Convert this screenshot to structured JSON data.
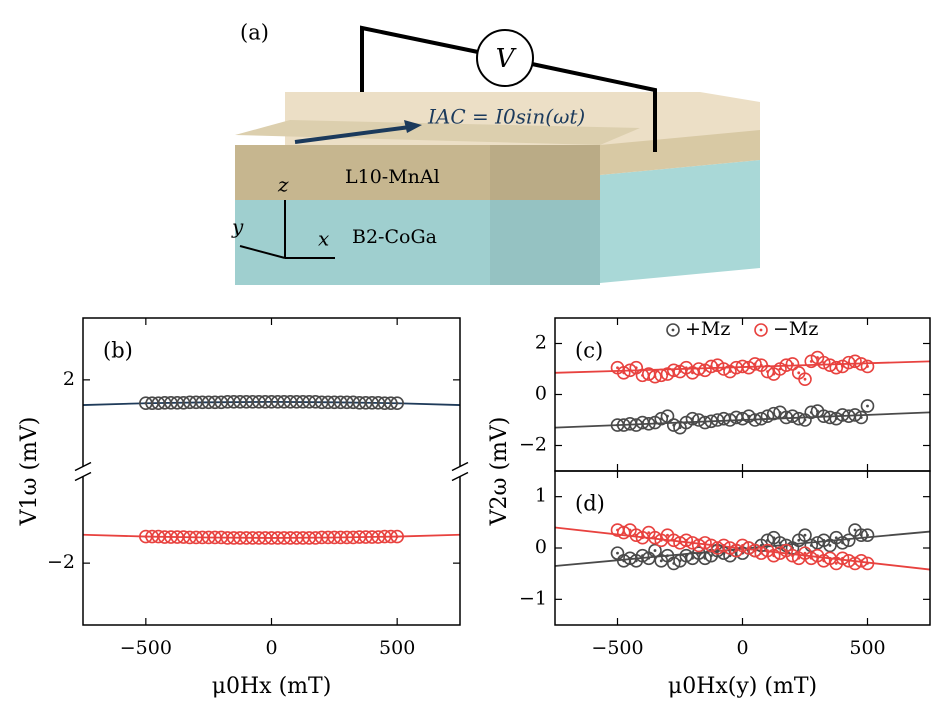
{
  "diagram": {
    "panel_label": "(a)",
    "meter": "V",
    "current": "IAC = I0sin(ωt)",
    "layer_top": "L10-MnAl",
    "layer_bottom": "B2-CoGa",
    "axis_x": "x",
    "axis_y": "y",
    "axis_z": "z"
  },
  "chart_data": [
    {
      "type": "scatter",
      "panel_label": "(b)",
      "xlabel": "μ0Hx (mT)",
      "ylabel": "V1ω (mV)",
      "axis_break": true,
      "xlim": [
        -750,
        750
      ],
      "ylim": [
        -3.35,
        3.35
      ],
      "xticks": [
        {
          "value": -500,
          "label": "−500"
        },
        0,
        500
      ],
      "yticks": [
        {
          "value": -2,
          "label": "−2"
        },
        2
      ],
      "x": [
        -500,
        -475,
        -450,
        -425,
        -400,
        -375,
        -350,
        -325,
        -300,
        -275,
        -250,
        -225,
        -200,
        -175,
        -150,
        -125,
        -100,
        -75,
        -50,
        -25,
        0,
        25,
        50,
        75,
        100,
        125,
        150,
        175,
        200,
        225,
        250,
        275,
        300,
        325,
        350,
        375,
        400,
        425,
        450,
        475,
        500
      ],
      "series": [
        {
          "color": "#4a4a4a",
          "values": [
            1.49,
            1.49,
            1.49,
            1.5,
            1.5,
            1.5,
            1.5,
            1.51,
            1.51,
            1.51,
            1.51,
            1.51,
            1.51,
            1.52,
            1.52,
            1.52,
            1.52,
            1.52,
            1.52,
            1.52,
            1.52,
            1.52,
            1.52,
            1.52,
            1.52,
            1.52,
            1.52,
            1.52,
            1.51,
            1.51,
            1.51,
            1.51,
            1.51,
            1.51,
            1.5,
            1.5,
            1.5,
            1.5,
            1.49,
            1.49,
            1.49
          ]
        },
        {
          "color": "#e8423f",
          "values": [
            -1.42,
            -1.42,
            -1.42,
            -1.43,
            -1.43,
            -1.43,
            -1.43,
            -1.44,
            -1.44,
            -1.44,
            -1.44,
            -1.44,
            -1.44,
            -1.45,
            -1.45,
            -1.45,
            -1.45,
            -1.45,
            -1.45,
            -1.45,
            -1.45,
            -1.45,
            -1.45,
            -1.45,
            -1.45,
            -1.45,
            -1.45,
            -1.45,
            -1.44,
            -1.44,
            -1.44,
            -1.44,
            -1.44,
            -1.44,
            -1.43,
            -1.43,
            -1.43,
            -1.43,
            -1.42,
            -1.42,
            -1.42
          ]
        }
      ],
      "fits": [
        {
          "color": "#1f3b5a",
          "x": [
            -750,
            -500,
            -250,
            0,
            250,
            500,
            750
          ],
          "values": [
            1.45,
            1.49,
            1.51,
            1.52,
            1.51,
            1.49,
            1.45
          ]
        },
        {
          "color": "#e8423f",
          "x": [
            -750,
            -500,
            -250,
            0,
            250,
            500,
            750
          ],
          "values": [
            -1.38,
            -1.42,
            -1.44,
            -1.45,
            -1.44,
            -1.42,
            -1.38
          ]
        }
      ]
    },
    {
      "type": "scatter",
      "panel_label": "(c)",
      "ylabel": "V2ω (mV)",
      "xtick_labels": false,
      "xlim": [
        -750,
        750
      ],
      "ylim": [
        -3,
        3
      ],
      "xticks": [
        -500,
        0,
        500
      ],
      "yticks": [
        {
          "value": -2,
          "label": "−2"
        },
        0,
        2
      ],
      "x": [
        -500,
        -475,
        -450,
        -425,
        -400,
        -375,
        -350,
        -325,
        -300,
        -275,
        -250,
        -225,
        -200,
        -175,
        -150,
        -125,
        -100,
        -75,
        -50,
        -25,
        0,
        25,
        50,
        75,
        100,
        125,
        150,
        175,
        200,
        225,
        250,
        275,
        300,
        325,
        350,
        375,
        400,
        425,
        450,
        475,
        500
      ],
      "series": [
        {
          "name": "+Mz",
          "color": "#4a4a4a",
          "values": [
            -1.2,
            -1.2,
            -1.15,
            -1.2,
            -1.1,
            -1.15,
            -1.1,
            -0.95,
            -0.85,
            -1.2,
            -1.3,
            -1.1,
            -0.95,
            -1.0,
            -1.1,
            -1.05,
            -1.0,
            -0.95,
            -1.0,
            -0.9,
            -0.95,
            -0.85,
            -1.0,
            -0.95,
            -0.85,
            -0.75,
            -0.7,
            -0.9,
            -0.85,
            -0.95,
            -1.0,
            -0.7,
            -0.65,
            -0.85,
            -0.9,
            -0.95,
            -0.8,
            -0.85,
            -0.8,
            -0.9,
            -0.45
          ]
        },
        {
          "name": "−Mz",
          "color": "#e8423f",
          "values": [
            1.05,
            0.85,
            0.95,
            1.05,
            0.75,
            0.8,
            0.7,
            0.75,
            0.8,
            0.95,
            0.9,
            1.05,
            0.85,
            1.0,
            0.95,
            1.1,
            1.15,
            1.0,
            0.9,
            1.05,
            1.1,
            1.05,
            1.2,
            1.15,
            0.9,
            0.8,
            1.0,
            1.15,
            1.2,
            0.85,
            0.6,
            1.3,
            1.45,
            1.25,
            1.15,
            1.05,
            1.1,
            1.25,
            1.3,
            1.2,
            1.1
          ]
        }
      ],
      "fits": [
        {
          "color": "#4a4a4a",
          "x": [
            -750,
            750
          ],
          "values": [
            -1.3,
            -0.7
          ]
        },
        {
          "color": "#e8423f",
          "x": [
            -750,
            750
          ],
          "values": [
            0.85,
            1.3
          ]
        }
      ]
    },
    {
      "type": "scatter",
      "panel_label": "(d)",
      "xlabel": "μ0Hx(y) (mT)",
      "xlim": [
        -750,
        750
      ],
      "ylim": [
        -1.5,
        1.5
      ],
      "xticks": [
        {
          "value": -500,
          "label": "−500"
        },
        0,
        500
      ],
      "yticks": [
        {
          "value": -1,
          "label": "−1"
        },
        0,
        1
      ],
      "x": [
        -500,
        -475,
        -450,
        -425,
        -400,
        -375,
        -350,
        -325,
        -300,
        -275,
        -250,
        -225,
        -200,
        -175,
        -150,
        -125,
        -100,
        -75,
        -50,
        -25,
        0,
        25,
        50,
        75,
        100,
        125,
        150,
        175,
        200,
        225,
        250,
        275,
        300,
        325,
        350,
        375,
        400,
        425,
        450,
        475,
        500
      ],
      "series": [
        {
          "color": "#4a4a4a",
          "values": [
            -0.1,
            -0.25,
            -0.2,
            -0.25,
            -0.15,
            -0.2,
            -0.05,
            -0.25,
            -0.15,
            -0.3,
            -0.25,
            -0.15,
            -0.2,
            -0.1,
            -0.2,
            -0.15,
            -0.05,
            -0.1,
            -0.15,
            -0.05,
            -0.1,
            0.0,
            -0.05,
            0.05,
            0.15,
            0.2,
            0.1,
            0.05,
            0.0,
            0.15,
            0.25,
            0.05,
            0.1,
            0.15,
            0.05,
            0.2,
            0.1,
            0.15,
            0.35,
            0.25,
            0.25
          ]
        },
        {
          "color": "#e8423f",
          "values": [
            0.35,
            0.3,
            0.35,
            0.25,
            0.2,
            0.3,
            0.2,
            0.15,
            0.25,
            0.15,
            0.1,
            0.15,
            0.1,
            0.05,
            0.1,
            0.05,
            0.0,
            0.05,
            0.0,
            -0.05,
            0.05,
            0.0,
            -0.05,
            -0.1,
            -0.05,
            -0.15,
            -0.1,
            -0.05,
            -0.15,
            -0.2,
            -0.1,
            -0.2,
            -0.15,
            -0.25,
            -0.2,
            -0.3,
            -0.2,
            -0.25,
            -0.3,
            -0.25,
            -0.3
          ]
        }
      ],
      "fits": [
        {
          "color": "#4a4a4a",
          "x": [
            -750,
            750
          ],
          "values": [
            -0.35,
            0.32
          ]
        },
        {
          "color": "#e8423f",
          "x": [
            -750,
            750
          ],
          "values": [
            0.4,
            -0.42
          ]
        }
      ]
    }
  ]
}
